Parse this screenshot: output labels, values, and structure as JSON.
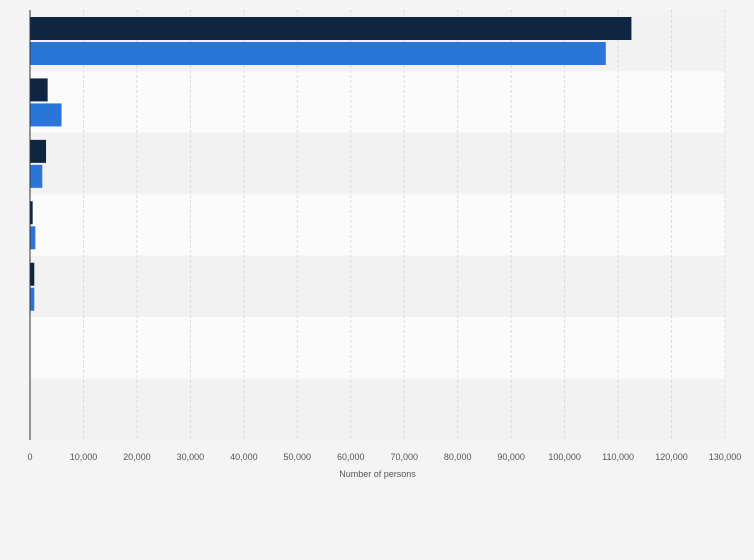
{
  "chart_data": {
    "type": "bar",
    "orientation": "horizontal",
    "categories": [
      "",
      "",
      "",
      "",
      "",
      "",
      ""
    ],
    "series": [
      {
        "values": [
          112500,
          3300,
          3000,
          500,
          800,
          0,
          0
        ]
      },
      {
        "values": [
          107700,
          5900,
          2300,
          1000,
          800,
          0,
          0
        ]
      }
    ],
    "xlabel": "Number of persons",
    "ylabel": "",
    "xlim": [
      0,
      130000
    ],
    "x_ticks": [
      "0",
      "10,000",
      "20,000",
      "30,000",
      "40,000",
      "50,000",
      "60,000",
      "70,000",
      "80,000",
      "90,000",
      "100,000",
      "110,000",
      "120,000",
      "130,000"
    ],
    "grid": true,
    "colors": {
      "series": [
        "#0f2640",
        "#2a75d8"
      ],
      "band_light": "#fbfbfb",
      "band_dark": "#f2f2f2",
      "grid": "#dcdcdc",
      "axis": "#333333"
    }
  }
}
